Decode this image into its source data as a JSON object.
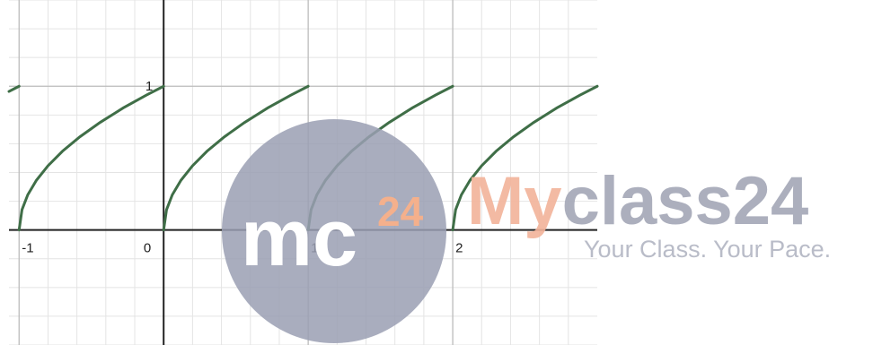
{
  "chart_data": {
    "type": "line",
    "xlim": [
      -1.07,
      3
    ],
    "ylim": [
      -0.8,
      1.6
    ],
    "xticks": [
      -1,
      0,
      1,
      2
    ],
    "yticks": [
      1
    ],
    "grid": true,
    "series": [
      {
        "color": "#3f6e47",
        "x": [
          -1.07,
          -1.035,
          -1
        ],
        "values": [
          0.964,
          0.982,
          1
        ]
      },
      {
        "color": "#3f6e47",
        "x": [
          -1,
          -0.98,
          -0.94,
          -0.88,
          -0.8,
          -0.7,
          -0.58,
          -0.44,
          -0.28,
          -0.12,
          0
        ],
        "values": [
          0,
          0.141,
          0.245,
          0.346,
          0.447,
          0.548,
          0.648,
          0.748,
          0.849,
          0.938,
          1
        ]
      },
      {
        "color": "#3f6e47",
        "x": [
          0,
          0.02,
          0.06,
          0.12,
          0.2,
          0.3,
          0.42,
          0.56,
          0.72,
          0.88,
          1
        ],
        "values": [
          0,
          0.141,
          0.245,
          0.346,
          0.447,
          0.548,
          0.648,
          0.748,
          0.849,
          0.938,
          1
        ]
      },
      {
        "color": "#3f6e47",
        "x": [
          1,
          1.02,
          1.06,
          1.12,
          1.2,
          1.3,
          1.42,
          1.56,
          1.72,
          1.88,
          2
        ],
        "values": [
          0,
          0.141,
          0.245,
          0.346,
          0.447,
          0.548,
          0.648,
          0.748,
          0.849,
          0.938,
          1
        ]
      },
      {
        "color": "#3f6e47",
        "x": [
          2,
          2.02,
          2.06,
          2.12,
          2.2,
          2.3,
          2.42,
          2.56,
          2.72,
          2.88,
          3
        ],
        "values": [
          0,
          0.141,
          0.245,
          0.346,
          0.447,
          0.548,
          0.648,
          0.748,
          0.849,
          0.938,
          1
        ]
      }
    ]
  },
  "watermark": {
    "logo": "mc",
    "logo_sup": "24",
    "brand_a": "My",
    "brand_b": "class24",
    "tagline": "Your Class. Your Pace."
  }
}
